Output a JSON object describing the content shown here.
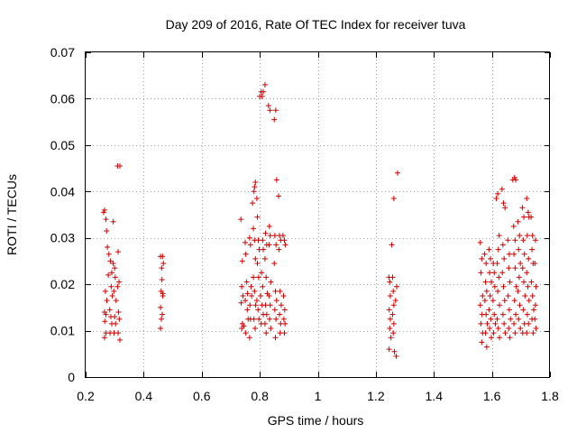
{
  "chart_data": {
    "type": "scatter",
    "title": "Day 209 of 2016, Rate Of TEC Index for receiver tuva",
    "xlabel": "GPS time / hours",
    "ylabel": "ROTI / TECUs",
    "xlim": [
      0.2,
      1.8
    ],
    "ylim": [
      0,
      0.07
    ],
    "xticks": [
      0.2,
      0.4,
      0.6,
      0.8,
      1,
      1.2,
      1.4,
      1.6,
      1.8
    ],
    "xtick_labels": [
      "0.2",
      "0.4",
      "0.6",
      "0.8",
      "1",
      "1.2",
      "1.4",
      "1.6",
      "1.8"
    ],
    "yticks": [
      0,
      0.01,
      0.02,
      0.03,
      0.04,
      0.05,
      0.06,
      0.07
    ],
    "ytick_labels": [
      "0",
      "0.01",
      "0.02",
      "0.03",
      "0.04",
      "0.05",
      "0.06",
      "0.07"
    ],
    "grid": true,
    "marker": "+",
    "color": "#cc0000",
    "series": [
      {
        "name": "ROTI",
        "points": [
          [
            0.262,
            0.0355
          ],
          [
            0.265,
            0.036
          ],
          [
            0.27,
            0.034
          ],
          [
            0.272,
            0.0315
          ],
          [
            0.275,
            0.028
          ],
          [
            0.268,
            0.0185
          ],
          [
            0.273,
            0.0165
          ],
          [
            0.265,
            0.014
          ],
          [
            0.27,
            0.0135
          ],
          [
            0.266,
            0.012
          ],
          [
            0.27,
            0.0095
          ],
          [
            0.265,
            0.0085
          ],
          [
            0.28,
            0.0265
          ],
          [
            0.285,
            0.025
          ],
          [
            0.29,
            0.0225
          ],
          [
            0.288,
            0.0195
          ],
          [
            0.292,
            0.0175
          ],
          [
            0.283,
            0.0145
          ],
          [
            0.287,
            0.013
          ],
          [
            0.29,
            0.0115
          ],
          [
            0.284,
            0.0095
          ],
          [
            0.295,
            0.0245
          ],
          [
            0.3,
            0.0235
          ],
          [
            0.302,
            0.0215
          ],
          [
            0.297,
            0.0185
          ],
          [
            0.305,
            0.0165
          ],
          [
            0.3,
            0.013
          ],
          [
            0.303,
            0.0115
          ],
          [
            0.298,
            0.0095
          ],
          [
            0.31,
            0.0455
          ],
          [
            0.318,
            0.0455
          ],
          [
            0.312,
            0.027
          ],
          [
            0.315,
            0.0205
          ],
          [
            0.31,
            0.0195
          ],
          [
            0.313,
            0.014
          ],
          [
            0.316,
            0.0125
          ],
          [
            0.312,
            0.0095
          ],
          [
            0.318,
            0.008
          ],
          [
            0.295,
            0.0335
          ],
          [
            0.278,
            0.022
          ],
          [
            0.458,
            0.026
          ],
          [
            0.465,
            0.026
          ],
          [
            0.462,
            0.0235
          ],
          [
            0.468,
            0.0245
          ],
          [
            0.46,
            0.0185
          ],
          [
            0.466,
            0.0175
          ],
          [
            0.463,
            0.021
          ],
          [
            0.458,
            0.015
          ],
          [
            0.464,
            0.0135
          ],
          [
            0.461,
            0.0125
          ],
          [
            0.458,
            0.0105
          ],
          [
            0.466,
            0.018
          ],
          [
            0.735,
            0.034
          ],
          [
            0.74,
            0.025
          ],
          [
            0.738,
            0.0195
          ],
          [
            0.742,
            0.0175
          ],
          [
            0.736,
            0.016
          ],
          [
            0.74,
            0.0115
          ],
          [
            0.745,
            0.011
          ],
          [
            0.738,
            0.0105
          ],
          [
            0.75,
            0.029
          ],
          [
            0.752,
            0.0265
          ],
          [
            0.755,
            0.0205
          ],
          [
            0.758,
            0.018
          ],
          [
            0.75,
            0.0165
          ],
          [
            0.757,
            0.0145
          ],
          [
            0.76,
            0.0125
          ],
          [
            0.752,
            0.0095
          ],
          [
            0.765,
            0.03
          ],
          [
            0.768,
            0.0285
          ],
          [
            0.77,
            0.0195
          ],
          [
            0.772,
            0.0175
          ],
          [
            0.766,
            0.0155
          ],
          [
            0.768,
            0.0125
          ],
          [
            0.765,
            0.0085
          ],
          [
            0.775,
            0.0375
          ],
          [
            0.78,
            0.04
          ],
          [
            0.782,
            0.041
          ],
          [
            0.785,
            0.042
          ],
          [
            0.778,
            0.032
          ],
          [
            0.782,
            0.0295
          ],
          [
            0.785,
            0.0255
          ],
          [
            0.778,
            0.0215
          ],
          [
            0.782,
            0.0185
          ],
          [
            0.786,
            0.0155
          ],
          [
            0.78,
            0.0125
          ],
          [
            0.784,
            0.0105
          ],
          [
            0.79,
            0.0385
          ],
          [
            0.792,
            0.0345
          ],
          [
            0.795,
            0.0295
          ],
          [
            0.798,
            0.0275
          ],
          [
            0.792,
            0.0245
          ],
          [
            0.796,
            0.0215
          ],
          [
            0.79,
            0.0165
          ],
          [
            0.794,
            0.0145
          ],
          [
            0.797,
            0.0125
          ],
          [
            0.8,
            0.0605
          ],
          [
            0.805,
            0.0615
          ],
          [
            0.808,
            0.0605
          ],
          [
            0.812,
            0.0615
          ],
          [
            0.81,
            0.0295
          ],
          [
            0.812,
            0.0275
          ],
          [
            0.806,
            0.0225
          ],
          [
            0.81,
            0.0195
          ],
          [
            0.803,
            0.0175
          ],
          [
            0.808,
            0.0155
          ],
          [
            0.812,
            0.0135
          ],
          [
            0.805,
            0.0115
          ],
          [
            0.818,
            0.063
          ],
          [
            0.82,
            0.031
          ],
          [
            0.824,
            0.0285
          ],
          [
            0.818,
            0.0255
          ],
          [
            0.822,
            0.0215
          ],
          [
            0.826,
            0.018
          ],
          [
            0.82,
            0.0155
          ],
          [
            0.824,
            0.0135
          ],
          [
            0.818,
            0.0115
          ],
          [
            0.822,
            0.0095
          ],
          [
            0.83,
            0.0585
          ],
          [
            0.835,
            0.0575
          ],
          [
            0.833,
            0.0325
          ],
          [
            0.836,
            0.0305
          ],
          [
            0.832,
            0.0285
          ],
          [
            0.838,
            0.0205
          ],
          [
            0.832,
            0.0175
          ],
          [
            0.836,
            0.0155
          ],
          [
            0.834,
            0.0125
          ],
          [
            0.838,
            0.0105
          ],
          [
            0.85,
            0.0555
          ],
          [
            0.855,
            0.0575
          ],
          [
            0.858,
            0.0425
          ],
          [
            0.852,
            0.0305
          ],
          [
            0.856,
            0.0285
          ],
          [
            0.85,
            0.0245
          ],
          [
            0.854,
            0.0185
          ],
          [
            0.858,
            0.0165
          ],
          [
            0.852,
            0.0145
          ],
          [
            0.856,
            0.0125
          ],
          [
            0.854,
            0.0085
          ],
          [
            0.865,
            0.039
          ],
          [
            0.868,
            0.0305
          ],
          [
            0.872,
            0.0295
          ],
          [
            0.866,
            0.0275
          ],
          [
            0.87,
            0.0185
          ],
          [
            0.874,
            0.0155
          ],
          [
            0.868,
            0.0135
          ],
          [
            0.872,
            0.0115
          ],
          [
            0.87,
            0.0095
          ],
          [
            0.88,
            0.0305
          ],
          [
            0.885,
            0.0295
          ],
          [
            0.888,
            0.0285
          ],
          [
            0.882,
            0.0175
          ],
          [
            0.886,
            0.0145
          ],
          [
            0.883,
            0.0125
          ],
          [
            0.887,
            0.0115
          ],
          [
            0.885,
            0.0095
          ],
          [
            1.245,
            0.0215
          ],
          [
            1.248,
            0.0205
          ],
          [
            1.25,
            0.0175
          ],
          [
            1.246,
            0.0145
          ],
          [
            1.25,
            0.0125
          ],
          [
            1.248,
            0.0105
          ],
          [
            1.252,
            0.0085
          ],
          [
            1.246,
            0.006
          ],
          [
            1.255,
            0.0285
          ],
          [
            1.258,
            0.0215
          ],
          [
            1.26,
            0.0185
          ],
          [
            1.262,
            0.0155
          ],
          [
            1.258,
            0.0135
          ],
          [
            1.262,
            0.0115
          ],
          [
            1.26,
            0.0095
          ],
          [
            1.264,
            0.0055
          ],
          [
            1.27,
            0.0045
          ],
          [
            1.262,
            0.0385
          ],
          [
            1.275,
            0.044
          ],
          [
            1.272,
            0.0195
          ],
          [
            1.268,
            0.0165
          ],
          [
            1.56,
            0.029
          ],
          [
            1.565,
            0.0255
          ],
          [
            1.562,
            0.0225
          ],
          [
            1.568,
            0.0175
          ],
          [
            1.56,
            0.0155
          ],
          [
            1.566,
            0.0135
          ],
          [
            1.562,
            0.0115
          ],
          [
            1.568,
            0.0095
          ],
          [
            1.565,
            0.0075
          ],
          [
            1.575,
            0.0265
          ],
          [
            1.58,
            0.0245
          ],
          [
            1.578,
            0.0205
          ],
          [
            1.582,
            0.0185
          ],
          [
            1.576,
            0.0165
          ],
          [
            1.58,
            0.0135
          ],
          [
            1.584,
            0.0115
          ],
          [
            1.578,
            0.0095
          ],
          [
            1.582,
            0.0065
          ],
          [
            1.59,
            0.0275
          ],
          [
            1.595,
            0.0255
          ],
          [
            1.592,
            0.0225
          ],
          [
            1.598,
            0.0205
          ],
          [
            1.594,
            0.0175
          ],
          [
            1.59,
            0.0145
          ],
          [
            1.596,
            0.0125
          ],
          [
            1.592,
            0.0105
          ],
          [
            1.598,
            0.0085
          ],
          [
            1.605,
            0.0245
          ],
          [
            1.608,
            0.0225
          ],
          [
            1.61,
            0.0195
          ],
          [
            1.604,
            0.0165
          ],
          [
            1.608,
            0.0135
          ],
          [
            1.612,
            0.0115
          ],
          [
            1.606,
            0.0095
          ],
          [
            1.615,
            0.0385
          ],
          [
            1.62,
            0.0395
          ],
          [
            1.625,
            0.0305
          ],
          [
            1.622,
            0.0275
          ],
          [
            1.618,
            0.0245
          ],
          [
            1.624,
            0.0215
          ],
          [
            1.62,
            0.0185
          ],
          [
            1.626,
            0.0155
          ],
          [
            1.618,
            0.0125
          ],
          [
            1.622,
            0.0105
          ],
          [
            1.626,
            0.0085
          ],
          [
            1.635,
            0.0405
          ],
          [
            1.64,
            0.0375
          ],
          [
            1.645,
            0.0365
          ],
          [
            1.638,
            0.0285
          ],
          [
            1.642,
            0.0255
          ],
          [
            1.636,
            0.0225
          ],
          [
            1.64,
            0.0195
          ],
          [
            1.644,
            0.0165
          ],
          [
            1.638,
            0.0135
          ],
          [
            1.642,
            0.0115
          ],
          [
            1.646,
            0.0095
          ],
          [
            1.655,
            0.0295
          ],
          [
            1.66,
            0.0265
          ],
          [
            1.658,
            0.0235
          ],
          [
            1.662,
            0.0205
          ],
          [
            1.656,
            0.0175
          ],
          [
            1.66,
            0.0145
          ],
          [
            1.664,
            0.0125
          ],
          [
            1.658,
            0.0105
          ],
          [
            1.662,
            0.0085
          ],
          [
            1.672,
            0.0425
          ],
          [
            1.678,
            0.043
          ],
          [
            1.682,
            0.0425
          ],
          [
            1.675,
            0.0325
          ],
          [
            1.68,
            0.0295
          ],
          [
            1.676,
            0.0265
          ],
          [
            1.68,
            0.0235
          ],
          [
            1.684,
            0.0195
          ],
          [
            1.678,
            0.0165
          ],
          [
            1.682,
            0.0135
          ],
          [
            1.676,
            0.0115
          ],
          [
            1.68,
            0.0095
          ],
          [
            1.69,
            0.0335
          ],
          [
            1.695,
            0.0305
          ],
          [
            1.692,
            0.0275
          ],
          [
            1.698,
            0.0245
          ],
          [
            1.694,
            0.0215
          ],
          [
            1.69,
            0.0185
          ],
          [
            1.696,
            0.0155
          ],
          [
            1.692,
            0.0125
          ],
          [
            1.698,
            0.0105
          ],
          [
            1.705,
            0.0365
          ],
          [
            1.71,
            0.0345
          ],
          [
            1.708,
            0.0295
          ],
          [
            1.712,
            0.0265
          ],
          [
            1.706,
            0.0235
          ],
          [
            1.71,
            0.0205
          ],
          [
            1.714,
            0.0175
          ],
          [
            1.708,
            0.0145
          ],
          [
            1.712,
            0.0115
          ],
          [
            1.706,
            0.0095
          ],
          [
            1.72,
            0.0385
          ],
          [
            1.725,
            0.0355
          ],
          [
            1.728,
            0.0345
          ],
          [
            1.722,
            0.0305
          ],
          [
            1.726,
            0.0255
          ],
          [
            1.72,
            0.0225
          ],
          [
            1.724,
            0.0195
          ],
          [
            1.728,
            0.0165
          ],
          [
            1.722,
            0.0135
          ],
          [
            1.726,
            0.0115
          ],
          [
            1.72,
            0.0095
          ],
          [
            1.735,
            0.0345
          ],
          [
            1.74,
            0.0305
          ],
          [
            1.738,
            0.0275
          ],
          [
            1.742,
            0.0245
          ],
          [
            1.736,
            0.0205
          ],
          [
            1.74,
            0.0175
          ],
          [
            1.744,
            0.0145
          ],
          [
            1.738,
            0.0125
          ],
          [
            1.742,
            0.0095
          ],
          [
            1.75,
            0.0295
          ],
          [
            1.748,
            0.0245
          ],
          [
            1.752,
            0.0195
          ],
          [
            1.75,
            0.0155
          ],
          [
            1.748,
            0.0125
          ],
          [
            1.752,
            0.0105
          ]
        ]
      }
    ]
  }
}
